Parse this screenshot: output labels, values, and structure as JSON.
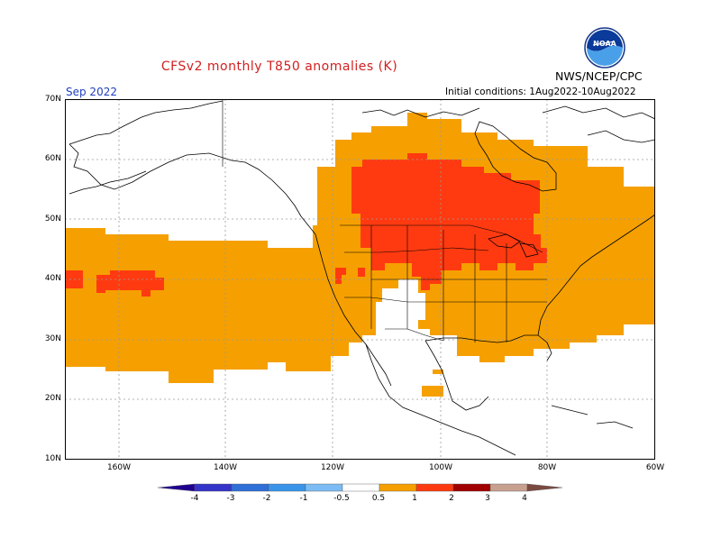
{
  "header": {
    "title": "CFSv2 monthly T850 anomalies (K)",
    "agency": "NWS/NCEP/CPC",
    "logo_text": "NOAA",
    "month": "Sep 2022",
    "initial_conditions": "Initial conditions: 1Aug2022-10Aug2022"
  },
  "map": {
    "lat_labels": [
      "70N",
      "60N",
      "50N",
      "40N",
      "30N",
      "20N",
      "10N"
    ],
    "lon_labels": [
      "160W",
      "140W",
      "120W",
      "100W",
      "80W",
      "60W"
    ],
    "colors": {
      "land_border": "#000000",
      "grid": "#9a9a9a",
      "anom_0_5_1": "#f5a000",
      "anom_1_2": "#ff3a10",
      "anom_2_3": "#a00000"
    }
  },
  "colorbar": {
    "labels": [
      "-4",
      "-3",
      "-2",
      "-1",
      "-0.5",
      "0.5",
      "1",
      "2",
      "3",
      "4"
    ],
    "colors": [
      "#200090",
      "#3434c8",
      "#2f6fd8",
      "#3a95e8",
      "#7cbcf4",
      "#ffffff",
      "#f5a000",
      "#ff3a10",
      "#a00000",
      "#c8a090",
      "#7a4a40"
    ]
  }
}
